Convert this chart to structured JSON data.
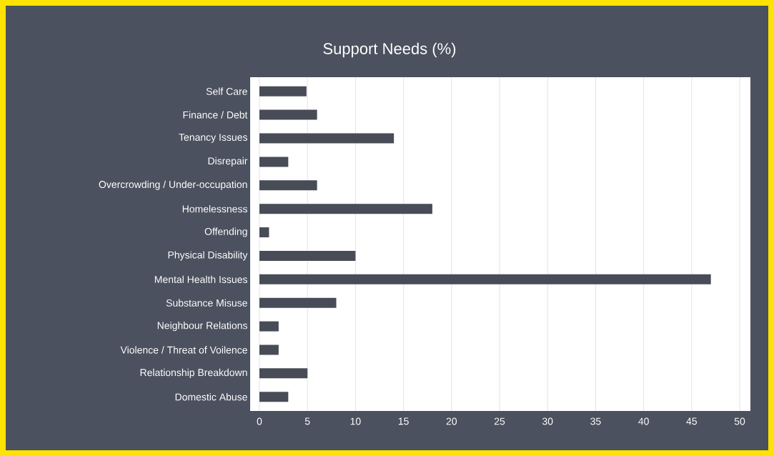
{
  "chart_data": {
    "type": "bar",
    "orientation": "horizontal",
    "title": "Support Needs (%)",
    "categories": [
      "Self Care",
      "Finance / Debt",
      "Tenancy Issues",
      "Disrepair",
      "Overcrowding / Under-occupation",
      "Homelessness",
      "Offending",
      "Physical Disability",
      "Mental Health Issues",
      "Substance Misuse",
      "Neighbour Relations",
      "Violence / Threat of Voilence",
      "Relationship Breakdown",
      "Domestic Abuse"
    ],
    "values": [
      4.9,
      6,
      14,
      3,
      6,
      18,
      1,
      10,
      47,
      8,
      2,
      2,
      5,
      3
    ],
    "color": "#474c57",
    "xlim": [
      0,
      50
    ],
    "xticks": [
      0,
      5,
      10,
      15,
      20,
      25,
      30,
      35,
      40,
      45,
      50
    ],
    "grid": "x"
  }
}
